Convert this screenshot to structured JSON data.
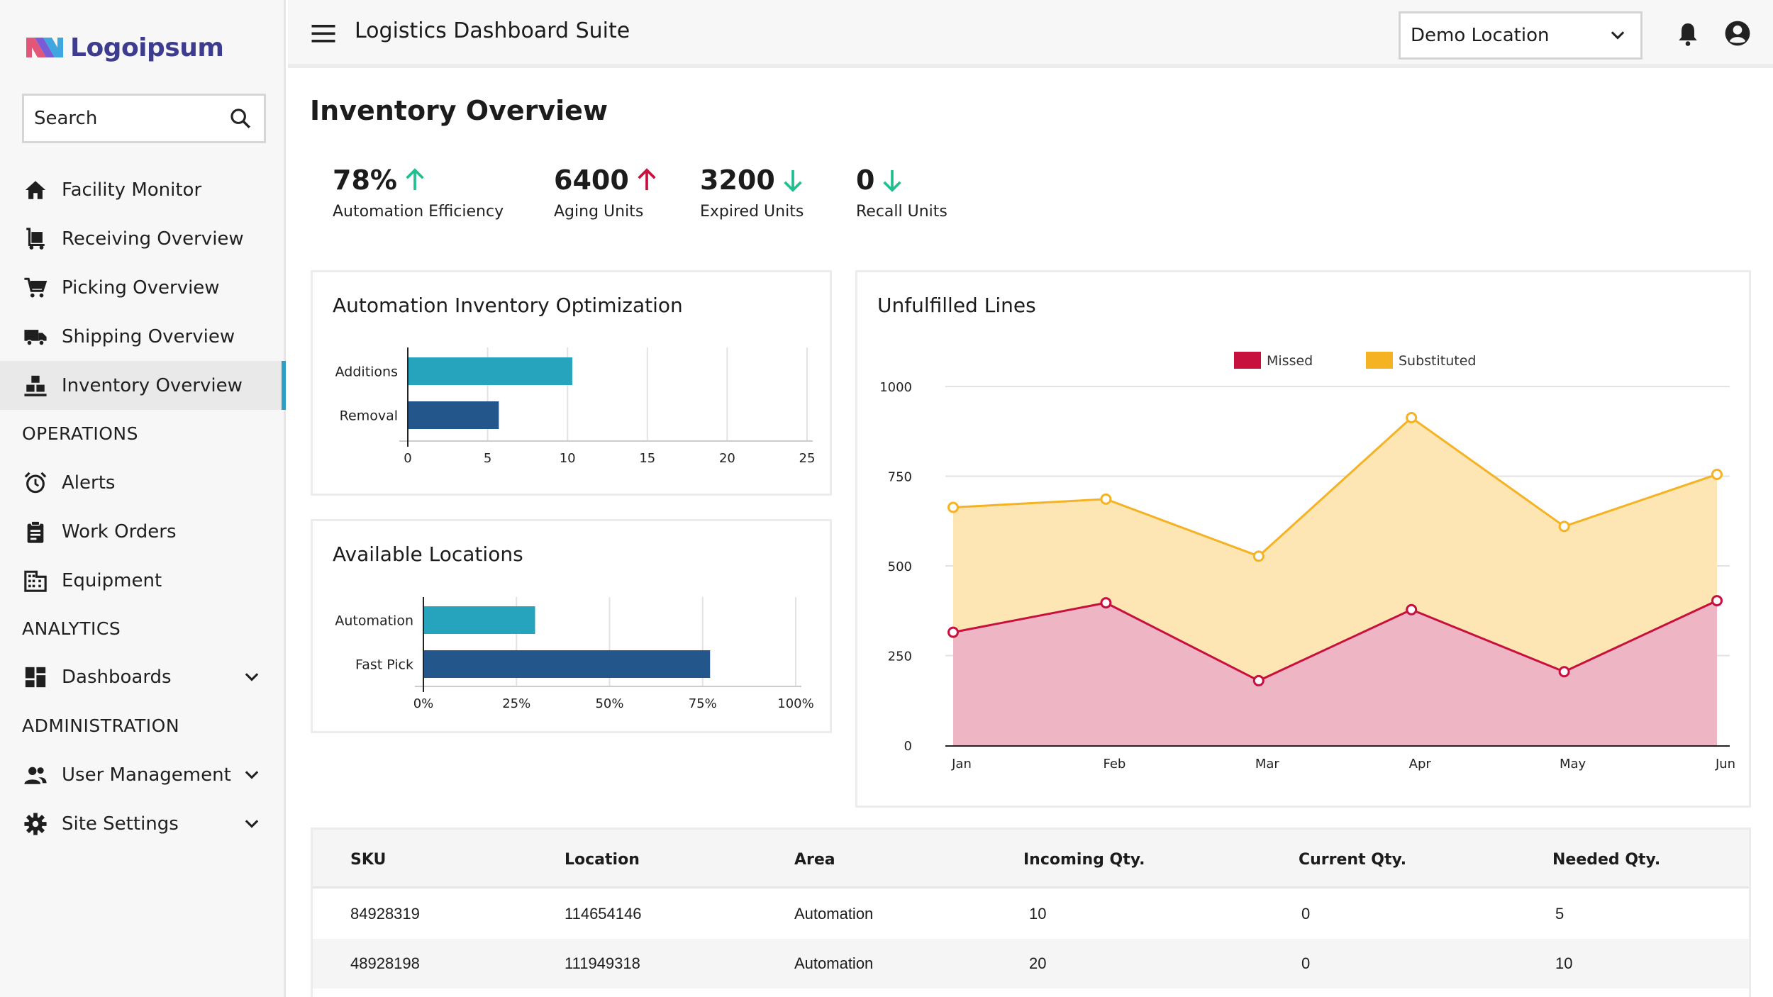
{
  "brand": {
    "name": "Logoipsum"
  },
  "header": {
    "title": "Logistics Dashboard Suite",
    "location": "Demo Location"
  },
  "search": {
    "placeholder": "Search"
  },
  "nav": {
    "main": [
      {
        "label": "Facility Monitor"
      },
      {
        "label": "Receiving Overview"
      },
      {
        "label": "Picking Overview"
      },
      {
        "label": "Shipping Overview"
      },
      {
        "label": "Inventory Overview"
      }
    ],
    "operations_label": "OPERATIONS",
    "operations": [
      {
        "label": "Alerts"
      },
      {
        "label": "Work Orders"
      },
      {
        "label": "Equipment"
      }
    ],
    "analytics_label": "ANALYTICS",
    "analytics": [
      {
        "label": "Dashboards"
      }
    ],
    "administration_label": "ADMINISTRATION",
    "administration": [
      {
        "label": "User Management"
      },
      {
        "label": "Site Settings"
      }
    ]
  },
  "page": {
    "title": "Inventory Overview"
  },
  "kpis": [
    {
      "value": "78%",
      "label": "Automation Efficiency",
      "trend": "up",
      "color": "#1fbf8f"
    },
    {
      "value": "6400",
      "label": "Aging Units",
      "trend": "up",
      "color": "#c8103e"
    },
    {
      "value": "3200",
      "label": "Expired Units",
      "trend": "down",
      "color": "#1fbf8f"
    },
    {
      "value": "0",
      "label": "Recall Units",
      "trend": "down",
      "color": "#1fbf8f"
    }
  ],
  "colors": {
    "teal": "#26a3bd",
    "navy": "#23568b",
    "missed": "#c8103e",
    "substituted": "#f5b323",
    "active_accent": "#2e9fc4"
  },
  "chart_data": [
    {
      "type": "bar",
      "title": "Automation Inventory Optimization",
      "orientation": "horizontal",
      "categories": [
        "Additions",
        "Removal"
      ],
      "values": [
        10.3,
        5.7
      ],
      "xlim": [
        0,
        25
      ],
      "xticks": [
        "0",
        "5",
        "10",
        "15",
        "20",
        "25"
      ]
    },
    {
      "type": "bar",
      "title": "Available Locations",
      "orientation": "horizontal",
      "categories": [
        "Automation",
        "Fast Pick"
      ],
      "values": [
        30,
        77
      ],
      "xlim": [
        0,
        100
      ],
      "xticks": [
        "0%",
        "25%",
        "50%",
        "75%",
        "100%"
      ]
    },
    {
      "type": "area",
      "title": "Unfulfilled Lines",
      "categories": [
        "Jan",
        "Feb",
        "Mar",
        "Apr",
        "May",
        "Jun"
      ],
      "series": [
        {
          "name": "Missed",
          "values": [
            315,
            397,
            180,
            378,
            205,
            403
          ]
        },
        {
          "name": "Substituted",
          "values": [
            663,
            686,
            527,
            913,
            610,
            755
          ]
        }
      ],
      "ylim": [
        0,
        1000
      ],
      "yticks": [
        "0",
        "250",
        "500",
        "750",
        "1000"
      ],
      "legend": "top-center"
    }
  ],
  "table": {
    "headers": [
      "SKU",
      "Location",
      "Area",
      "Incoming Qty.",
      "Current Qty.",
      "Needed Qty."
    ],
    "rows": [
      [
        "84928319",
        "114654146",
        "Automation",
        "10",
        "0",
        "5"
      ],
      [
        "48928198",
        "111949318",
        "Automation",
        "20",
        "0",
        "10"
      ]
    ]
  }
}
